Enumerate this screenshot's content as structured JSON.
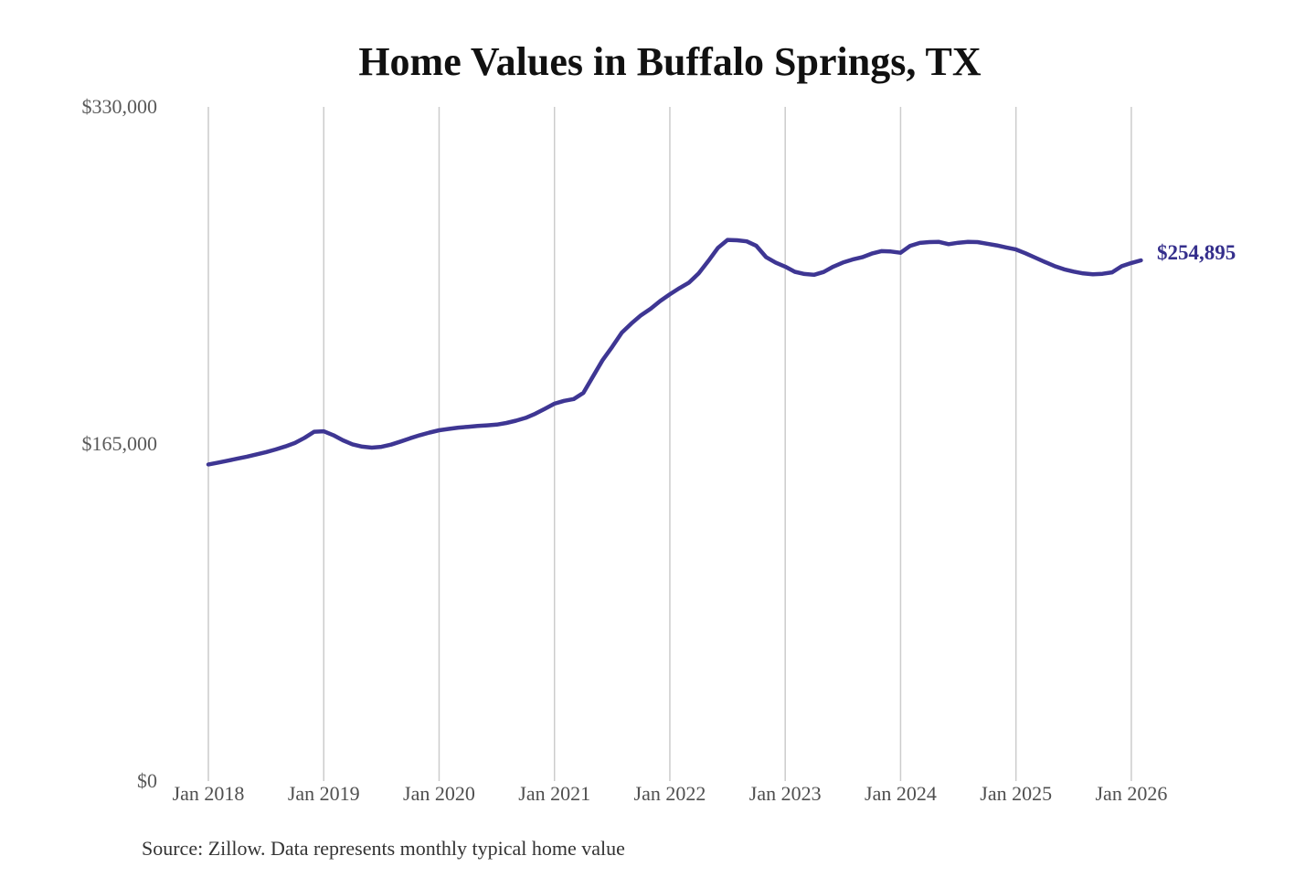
{
  "title": "Home Values in Buffalo Springs, TX",
  "source_note": "Source: Zillow. Data represents monthly typical home value",
  "colors": {
    "line": "#3e3693",
    "grid": "#cccccc",
    "title_text": "#111111",
    "axis_text": "#595959",
    "end_label_text": "#352f8c",
    "source_text": "#333333",
    "background": "#ffffff"
  },
  "chart_data": {
    "type": "line",
    "title": "Home Values in Buffalo Springs, TX",
    "xlabel": "",
    "ylabel": "",
    "ylim": [
      0,
      330000
    ],
    "grid": "vertical-only",
    "legend": "none",
    "y_ticks": [
      0,
      165000,
      330000
    ],
    "y_tick_labels": [
      "$0",
      "$165,000",
      "$330,000"
    ],
    "x_tick_labels": [
      "Jan 2018",
      "Jan 2019",
      "Jan 2020",
      "Jan 2021",
      "Jan 2022",
      "Jan 2023",
      "Jan 2024",
      "Jan 2025",
      "Jan 2026"
    ],
    "last_value": 254895,
    "last_value_label": "$254,895",
    "series": [
      {
        "name": "Monthly typical home value",
        "x": [
          "2018-01",
          "2018-02",
          "2018-03",
          "2018-04",
          "2018-05",
          "2018-06",
          "2018-07",
          "2018-08",
          "2018-09",
          "2018-10",
          "2018-11",
          "2018-12",
          "2019-01",
          "2019-02",
          "2019-03",
          "2019-04",
          "2019-05",
          "2019-06",
          "2019-07",
          "2019-08",
          "2019-09",
          "2019-10",
          "2019-11",
          "2019-12",
          "2020-01",
          "2020-02",
          "2020-03",
          "2020-04",
          "2020-05",
          "2020-06",
          "2020-07",
          "2020-08",
          "2020-09",
          "2020-10",
          "2020-11",
          "2020-12",
          "2021-01",
          "2021-02",
          "2021-03",
          "2021-04",
          "2021-05",
          "2021-06",
          "2021-07",
          "2021-08",
          "2021-09",
          "2021-10",
          "2021-11",
          "2021-12",
          "2022-01",
          "2022-02",
          "2022-03",
          "2022-04",
          "2022-05",
          "2022-06",
          "2022-07",
          "2022-08",
          "2022-09",
          "2022-10",
          "2022-11",
          "2022-12",
          "2023-01",
          "2023-02",
          "2023-03",
          "2023-04",
          "2023-05",
          "2023-06",
          "2023-07",
          "2023-08",
          "2023-09",
          "2023-10",
          "2023-11",
          "2023-12",
          "2024-01",
          "2024-02",
          "2024-03",
          "2024-04",
          "2024-05",
          "2024-06",
          "2024-07",
          "2024-08",
          "2024-09",
          "2024-10",
          "2024-11",
          "2024-12",
          "2025-01",
          "2025-02",
          "2025-03",
          "2025-04",
          "2025-05",
          "2025-06",
          "2025-07",
          "2025-08",
          "2025-09",
          "2025-10",
          "2025-11",
          "2025-12",
          "2026-01",
          "2026-02"
        ],
        "values": [
          155000,
          155900,
          156800,
          157800,
          158800,
          159900,
          161000,
          162300,
          163800,
          165500,
          168000,
          171000,
          171200,
          169300,
          166800,
          164800,
          163700,
          163200,
          163600,
          164700,
          166200,
          167800,
          169300,
          170600,
          171700,
          172400,
          173000,
          173400,
          173800,
          174100,
          174500,
          175300,
          176400,
          177800,
          179800,
          182200,
          184700,
          186100,
          187000,
          190000,
          198000,
          206000,
          212500,
          219500,
          224000,
          228000,
          231200,
          235000,
          238300,
          241300,
          244000,
          248500,
          254500,
          261000,
          264900,
          264700,
          264200,
          262000,
          256500,
          253800,
          251800,
          249300,
          248200,
          247800,
          249200,
          251800,
          253800,
          255300,
          256400,
          258200,
          259400,
          259200,
          258600,
          262000,
          263400,
          263800,
          263900,
          262800,
          263500,
          263900,
          263800,
          263000,
          262200,
          261200,
          260200,
          258300,
          256200,
          254100,
          252100,
          250500,
          249400,
          248500,
          248100,
          248300,
          249000,
          252000,
          253600,
          254895
        ]
      }
    ]
  }
}
